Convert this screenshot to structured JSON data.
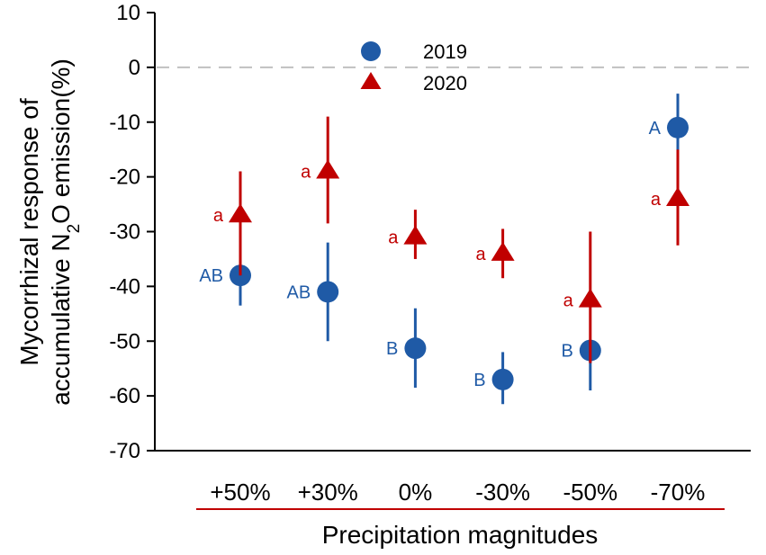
{
  "chart_data": {
    "type": "scatter",
    "title": "",
    "xlabel": "Precipitation magnitudes",
    "ylabel_line1": "Mycorrhizal response of",
    "ylabel_line2_pre": "accumulative N",
    "ylabel_line2_sub": "2",
    "ylabel_line2_post": "O emission(%)",
    "categories": [
      "+50%",
      "+30%",
      "0%",
      "-30%",
      "-50%",
      "-70%"
    ],
    "ylim": [
      -70,
      10
    ],
    "yticks": [
      10,
      0,
      -10,
      -20,
      -30,
      -40,
      -50,
      -60,
      -70
    ],
    "reference_line": 0,
    "legend_position": "top-center",
    "series": [
      {
        "name": "2019",
        "marker": "circle",
        "color": "#1f5aa6",
        "values": [
          -38,
          -41,
          -51.3,
          -57,
          -51.7,
          -11
        ],
        "err_low": [
          -43.5,
          -50,
          -58.5,
          -61.5,
          -59,
          -4.8
        ],
        "err_high": [
          -35,
          -32,
          -44,
          -52,
          -51,
          -17
        ],
        "labels": [
          "AB",
          "AB",
          "B",
          "B",
          "B",
          "A"
        ]
      },
      {
        "name": "2020",
        "marker": "triangle",
        "color": "#c00000",
        "values": [
          -27,
          -19,
          -31,
          -34,
          -42.5,
          -24
        ],
        "err_low": [
          -38,
          -28.5,
          -35,
          -38.5,
          -54,
          -32.5
        ],
        "err_high": [
          -19,
          -9,
          -26,
          -29.5,
          -30,
          -15
        ],
        "labels": [
          "a",
          "a",
          "a",
          "a",
          "a",
          "a"
        ]
      }
    ]
  }
}
